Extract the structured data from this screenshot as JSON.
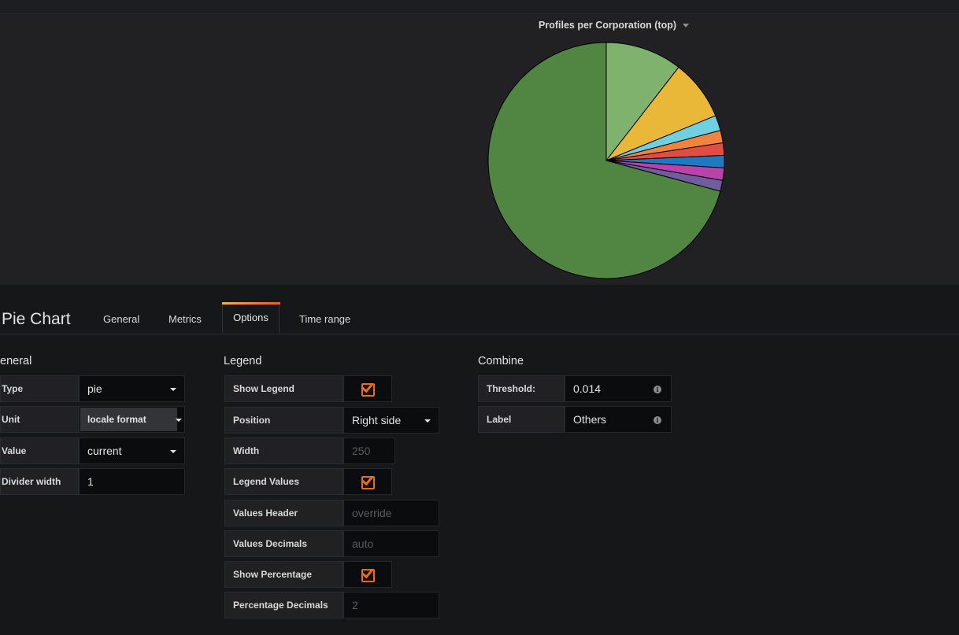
{
  "panel": {
    "title": "Profiles per Corporation (top)",
    "divider_color": "#000000"
  },
  "chart_data": {
    "type": "pie",
    "title": "Profiles per Corporation (top)",
    "slices": [
      {
        "value": 10.5,
        "color": "#7eb26d"
      },
      {
        "value": 8.3,
        "color": "#eab839"
      },
      {
        "value": 2.1,
        "color": "#6ed0e0"
      },
      {
        "value": 1.7,
        "color": "#ef843c"
      },
      {
        "value": 1.7,
        "color": "#e24d42"
      },
      {
        "value": 1.7,
        "color": "#1f78c1"
      },
      {
        "value": 1.7,
        "color": "#ba43a9"
      },
      {
        "value": 1.5,
        "color": "#705da0"
      },
      {
        "value": 70.8,
        "color": "#508642"
      }
    ]
  },
  "editor": {
    "title": "Pie Chart",
    "tabs": [
      {
        "label": "General"
      },
      {
        "label": "Metrics"
      },
      {
        "label": "Options"
      },
      {
        "label": "Time range"
      }
    ],
    "active_tab": "Options"
  },
  "general": {
    "heading": "eneral",
    "type_label": "Type",
    "type_value": "pie",
    "unit_label": "Unit",
    "unit_value": "locale format",
    "value_label": "Value",
    "value_value": "current",
    "divider_label": "Divider width",
    "divider_value": "1"
  },
  "legend": {
    "heading": "Legend",
    "show_legend_label": "Show Legend",
    "show_legend_checked": true,
    "position_label": "Position",
    "position_value": "Right side",
    "width_label": "Width",
    "width_placeholder": "250",
    "legend_values_label": "Legend Values",
    "legend_values_checked": true,
    "values_header_label": "Values Header",
    "values_header_placeholder": "override",
    "values_decimals_label": "Values Decimals",
    "values_decimals_placeholder": "auto",
    "show_percentage_label": "Show Percentage",
    "show_percentage_checked": true,
    "percentage_decimals_label": "Percentage Decimals",
    "percentage_decimals_placeholder": "2"
  },
  "combine": {
    "heading": "Combine",
    "threshold_label": "Threshold:",
    "threshold_value": "0.014",
    "label_label": "Label",
    "label_value": "Others"
  },
  "colors": {
    "accent": "#e96d15",
    "background": "#161719",
    "panel": "#212124"
  }
}
